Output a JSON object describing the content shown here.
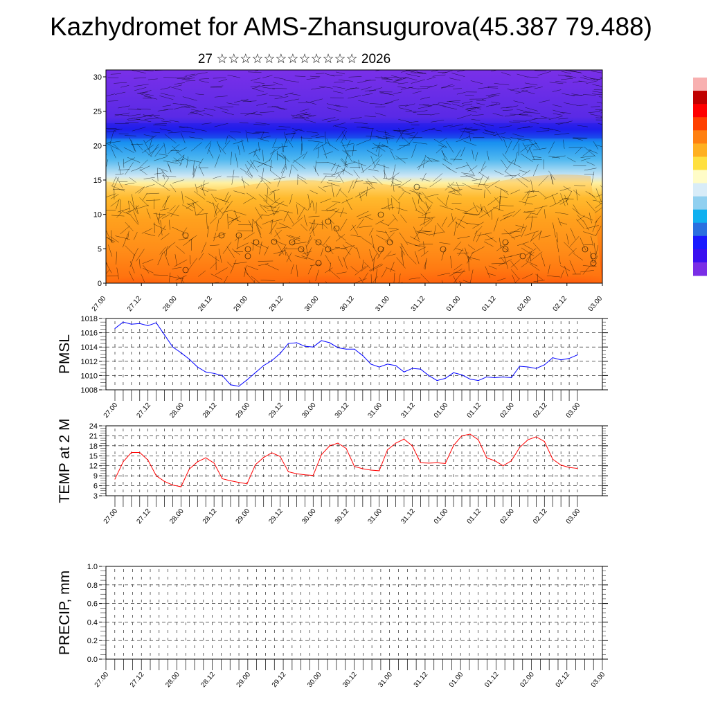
{
  "title": "Kazhydromet for AMS-Zhansugurova(45.387 79.488)",
  "subtitle": "27 ☆☆☆☆☆☆☆☆☆☆☆☆ 2026",
  "colors": {
    "pmsl_line": "#0000ff",
    "temp_line": "#ff0000"
  },
  "chart_data": [
    {
      "type": "heatmap",
      "name": "vertical-section",
      "ylabel": "",
      "ylim": [
        0,
        30
      ],
      "yticks": [
        "0",
        "5",
        "10",
        "15",
        "20",
        "25",
        "30"
      ],
      "xticks": [
        "27.00",
        "27.12",
        "28.00",
        "28.12",
        "29.00",
        "29.12",
        "30.00",
        "30.12",
        "31.00",
        "31.12",
        "01.00",
        "01.12",
        "02.00",
        "02.12",
        "03.00"
      ],
      "colorbar": [
        "#7a2ee6",
        "#3a10f0",
        "#1a1aff",
        "#2a70e0",
        "#10b0f0",
        "#90d0f0",
        "#d8ecf8",
        "#fffcc8",
        "#ffe040",
        "#ffb020",
        "#ff8010",
        "#ff4000",
        "#ff0000",
        "#c00000",
        "#f8b0b0"
      ]
    },
    {
      "type": "line",
      "name": "pmsl",
      "ylabel": "PMSL",
      "ylim": [
        1008,
        1018
      ],
      "yticks": [
        "1008",
        "1010",
        "1012",
        "1014",
        "1016",
        "1018"
      ],
      "xticks": [
        "27.00",
        "27.12",
        "28.00",
        "28.12",
        "29.00",
        "29.12",
        "30.00",
        "30.12",
        "31.00",
        "31.12",
        "01.00",
        "01.12",
        "02.00",
        "02.12",
        "03.00"
      ],
      "values": [
        1016.6,
        1017.5,
        1017.2,
        1017.3,
        1017.0,
        1017.4,
        1015.7,
        1014.0,
        1013.2,
        1012.3,
        1011.2,
        1010.5,
        1010.3,
        1010.0,
        1008.7,
        1008.5,
        1009.4,
        1010.4,
        1011.4,
        1012.1,
        1013.1,
        1014.5,
        1014.6,
        1014.1,
        1014.0,
        1014.9,
        1014.6,
        1013.9,
        1013.7,
        1013.7,
        1012.8,
        1011.6,
        1011.2,
        1011.6,
        1011.4,
        1010.5,
        1011.0,
        1010.9,
        1010.0,
        1009.3,
        1009.6,
        1010.4,
        1010.1,
        1009.5,
        1009.3,
        1009.8,
        1009.7,
        1009.8,
        1009.7,
        1011.3,
        1011.2,
        1011.0,
        1011.5,
        1012.5,
        1012.2,
        1012.4,
        1012.9
      ]
    },
    {
      "type": "line",
      "name": "temp",
      "ylabel": "TEMP at 2 M",
      "ylim": [
        3,
        24
      ],
      "yticks": [
        "3",
        "6",
        "9",
        "12",
        "15",
        "18",
        "21",
        "24"
      ],
      "xticks": [
        "27.00",
        "27.12",
        "28.00",
        "28.12",
        "29.00",
        "29.12",
        "30.00",
        "30.12",
        "31.00",
        "31.12",
        "01.00",
        "01.12",
        "02.00",
        "02.12",
        "03.00"
      ],
      "values": [
        8,
        13.2,
        16,
        16,
        13.7,
        9,
        7.3,
        6.2,
        5.7,
        11,
        13.2,
        14.4,
        12.8,
        8.1,
        7.5,
        7,
        6.6,
        12.3,
        14.5,
        15.9,
        14.8,
        10.2,
        9.6,
        9.3,
        9.1,
        15.3,
        18,
        18.8,
        17.2,
        11.8,
        11.1,
        10.7,
        10.5,
        16.8,
        18.8,
        20,
        18,
        12.9,
        12.8,
        12.9,
        12.7,
        18.1,
        21,
        21.5,
        19.8,
        14.4,
        13.5,
        12,
        13.5,
        17.5,
        19.8,
        20.7,
        19.3,
        14,
        12.2,
        11.5,
        11.2
      ]
    },
    {
      "type": "line",
      "name": "precip",
      "ylabel": "PRECIP, mm",
      "ylim": [
        0,
        1
      ],
      "yticks": [
        "0.0",
        "0.2",
        "0.4",
        "0.6",
        "0.8",
        "1.0"
      ],
      "xticks": [
        "27.00",
        "27.12",
        "28.00",
        "28.12",
        "29.00",
        "29.12",
        "30.00",
        "30.12",
        "31.00",
        "31.12",
        "01.00",
        "01.12",
        "02.00",
        "02.12",
        "03.00"
      ],
      "values": []
    }
  ]
}
